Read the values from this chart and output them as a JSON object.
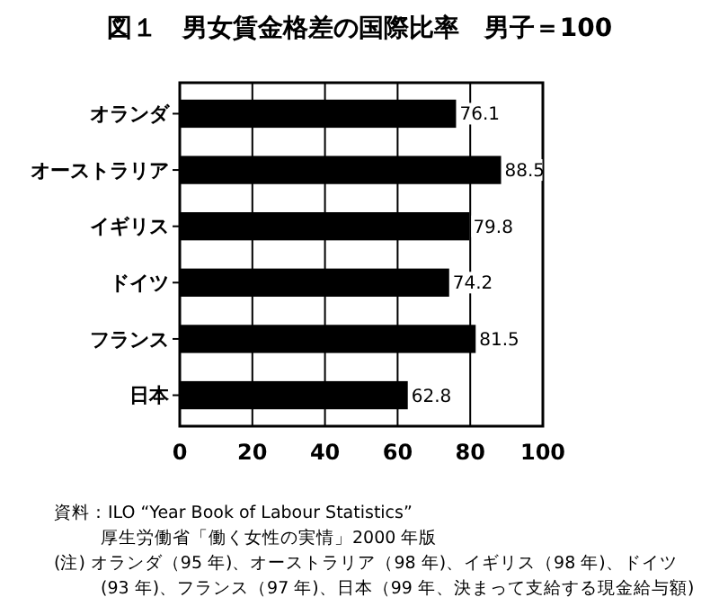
{
  "chart_data": {
    "type": "bar",
    "orientation": "horizontal",
    "title": "図１　男女賃金格差の国際比率　男子＝100",
    "categories": [
      "オランダ",
      "オーストラリア",
      "イギリス",
      "ドイツ",
      "フランス",
      "日本"
    ],
    "values": [
      76.1,
      88.5,
      79.8,
      74.2,
      81.5,
      62.8
    ],
    "color": "#000000",
    "xlim": [
      0,
      100
    ],
    "xticks": [
      0,
      20,
      40,
      60,
      80,
      100
    ],
    "grid": "x",
    "data_labels": true,
    "annotations": [
      "資料：ILO “Year Book of Labour Statistics”",
      "厚生労働省「働く女性の実情」2000 年版",
      "(注) オランダ（95 年)、オーストラリア（98 年)、イギリス（98 年)、ドイツ",
      "(93 年)、フランス（97 年)、日本（99 年、決まって支給する現金給与額)"
    ]
  }
}
